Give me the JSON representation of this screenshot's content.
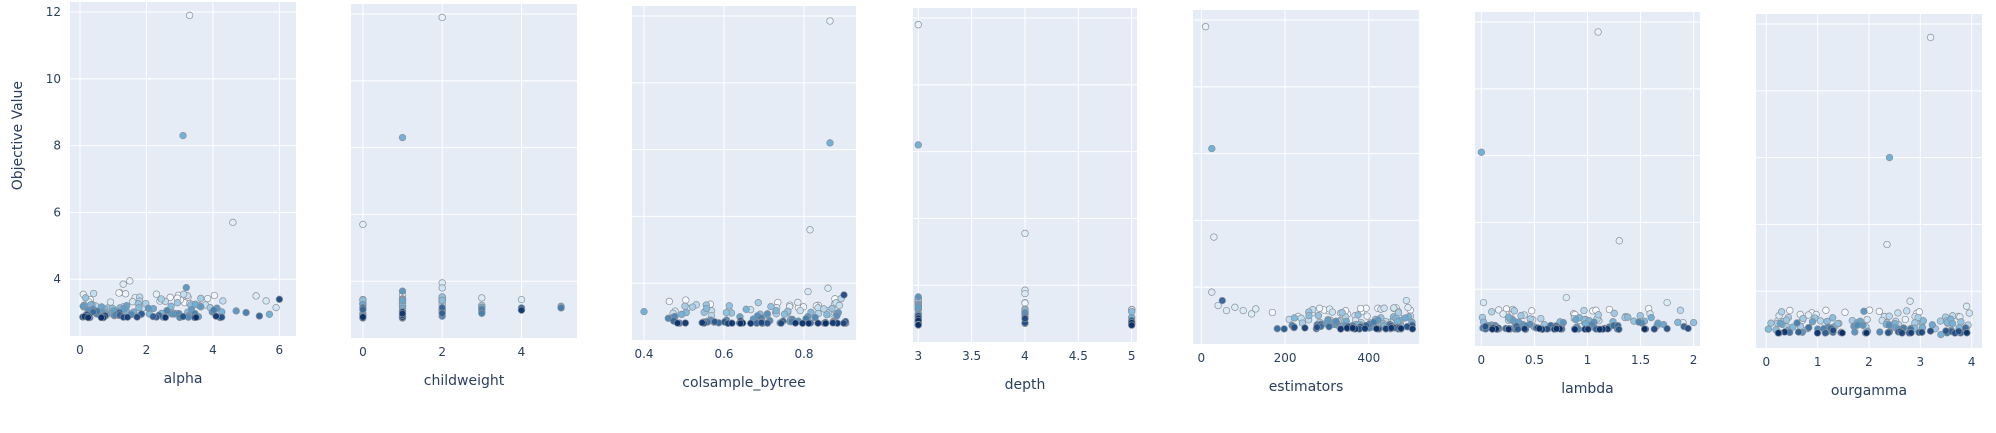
{
  "y_axis_title": "Objective Value",
  "y_ticks": [
    4,
    6,
    8,
    10,
    12
  ],
  "colors": {
    "plot_bg": "#e5ecf6",
    "grid": "#ffffff",
    "text": "#2a3f5f",
    "early_trial": "#f7fbff",
    "mid_trial": "#6baed6",
    "late_trial": "#08306b"
  },
  "chart_data": [
    {
      "type": "scatter",
      "xlabel": "alpha",
      "ylabel": "Objective Value",
      "xlim": [
        -0.3,
        6.5
      ],
      "ylim": [
        2.3,
        12.3
      ],
      "x_ticks": [
        0,
        2,
        4,
        6
      ],
      "x_tick_labels": [
        "0",
        "2",
        "4",
        "6"
      ],
      "points": [
        {
          "x": 3.3,
          "y": 11.9,
          "c": 0.05
        },
        {
          "x": 3.1,
          "y": 8.3,
          "c": 0.5
        },
        {
          "x": 4.6,
          "y": 5.7,
          "c": 0.08
        },
        {
          "x": 3.2,
          "y": 3.75,
          "c": 0.6
        },
        {
          "x": 1.5,
          "y": 3.95,
          "c": 0.05
        },
        {
          "x": 1.3,
          "y": 3.85,
          "c": 0.1
        },
        {
          "x": 0.1,
          "y": 3.55,
          "c": 0.05
        },
        {
          "x": 5.3,
          "y": 3.5,
          "c": 0.1
        },
        {
          "x": 5.6,
          "y": 3.35,
          "c": 0.12
        },
        {
          "x": 6.0,
          "y": 3.4,
          "c": 0.9
        },
        {
          "x": 5.9,
          "y": 3.15,
          "c": 0.15
        },
        {
          "x": 4.3,
          "y": 3.35,
          "c": 0.2
        },
        {
          "x": 4.7,
          "y": 3.05,
          "c": 0.6
        },
        {
          "x": 5.0,
          "y": 3.0,
          "c": 0.7
        },
        {
          "x": 5.4,
          "y": 2.9,
          "c": 0.8
        },
        {
          "x": 5.7,
          "y": 2.95,
          "c": 0.5
        }
      ],
      "cluster": {
        "x0": 0.0,
        "x1": 4.3,
        "y0": 2.85,
        "y1": 3.6,
        "n": 130,
        "seed": 11
      }
    },
    {
      "type": "scatter",
      "xlabel": "childweight",
      "ylabel": "Objective Value",
      "xlim": [
        -0.3,
        5.4
      ],
      "ylim": [
        2.3,
        12.3
      ],
      "x_ticks": [
        0,
        2,
        4
      ],
      "x_tick_labels": [
        "0",
        "2",
        "4"
      ],
      "points": [
        {
          "x": 2,
          "y": 11.9,
          "c": 0.05
        },
        {
          "x": 1,
          "y": 8.3,
          "c": 0.5
        },
        {
          "x": 0,
          "y": 5.7,
          "c": 0.08
        },
        {
          "x": 2,
          "y": 3.95,
          "c": 0.1
        },
        {
          "x": 2,
          "y": 3.8,
          "c": 0.15
        },
        {
          "x": 1,
          "y": 3.7,
          "c": 0.6
        },
        {
          "x": 3,
          "y": 3.5,
          "c": 0.1
        },
        {
          "x": 4,
          "y": 3.45,
          "c": 0.1
        },
        {
          "x": 5,
          "y": 3.2,
          "c": 0.7
        },
        {
          "x": 5,
          "y": 3.25,
          "c": 0.5
        },
        {
          "x": 4,
          "y": 3.2,
          "c": 0.8
        },
        {
          "x": 3,
          "y": 3.1,
          "c": 0.6
        }
      ],
      "columns": [
        {
          "x": 0,
          "y0": 2.85,
          "y1": 3.5,
          "n": 14
        },
        {
          "x": 1,
          "y0": 2.85,
          "y1": 3.6,
          "n": 26
        },
        {
          "x": 2,
          "y0": 2.85,
          "y1": 3.6,
          "n": 18
        },
        {
          "x": 3,
          "y0": 3.0,
          "y1": 3.35,
          "n": 5
        },
        {
          "x": 4,
          "y0": 3.1,
          "y1": 3.3,
          "n": 3
        }
      ]
    },
    {
      "type": "scatter",
      "xlabel": "colsample_bytree",
      "ylabel": "Objective Value",
      "xlim": [
        0.37,
        0.93
      ],
      "ylim": [
        2.3,
        12.3
      ],
      "x_ticks": [
        0.4,
        0.6,
        0.8
      ],
      "x_tick_labels": [
        "0.4",
        "0.6",
        "0.8"
      ],
      "points": [
        {
          "x": 0.865,
          "y": 11.85,
          "c": 0.05
        },
        {
          "x": 0.865,
          "y": 8.2,
          "c": 0.5
        },
        {
          "x": 0.815,
          "y": 5.6,
          "c": 0.08
        },
        {
          "x": 0.86,
          "y": 3.85,
          "c": 0.1
        },
        {
          "x": 0.81,
          "y": 3.75,
          "c": 0.12
        },
        {
          "x": 0.9,
          "y": 3.65,
          "c": 0.9
        },
        {
          "x": 0.4,
          "y": 3.15,
          "c": 0.5
        }
      ],
      "cluster": {
        "x0": 0.42,
        "x1": 0.905,
        "y0": 2.8,
        "y1": 3.55,
        "n": 130,
        "seed": 23,
        "skew": 0.4
      }
    },
    {
      "type": "scatter",
      "xlabel": "depth",
      "ylabel": "Objective Value",
      "xlim": [
        2.95,
        5.05
      ],
      "ylim": [
        2.3,
        12.3
      ],
      "x_ticks": [
        3,
        3.5,
        4,
        4.5,
        5
      ],
      "x_tick_labels": [
        "3",
        "3.5",
        "4",
        "4.5",
        "5"
      ],
      "points": [
        {
          "x": 3,
          "y": 11.8,
          "c": 0.05
        },
        {
          "x": 3,
          "y": 8.2,
          "c": 0.5
        },
        {
          "x": 4,
          "y": 5.55,
          "c": 0.08
        },
        {
          "x": 4,
          "y": 3.85,
          "c": 0.1
        },
        {
          "x": 4,
          "y": 3.75,
          "c": 0.1
        },
        {
          "x": 3,
          "y": 3.65,
          "c": 0.6
        }
      ],
      "columns": [
        {
          "x": 3,
          "y0": 2.8,
          "y1": 3.6,
          "n": 40
        },
        {
          "x": 4,
          "y0": 2.8,
          "y1": 3.5,
          "n": 14
        },
        {
          "x": 5,
          "y0": 2.8,
          "y1": 3.3,
          "n": 10
        }
      ]
    },
    {
      "type": "scatter",
      "xlabel": "estimators",
      "ylabel": "Objective Value",
      "xlim": [
        -20,
        520
      ],
      "ylim": [
        2.3,
        12.3
      ],
      "x_ticks": [
        0,
        200,
        400
      ],
      "x_tick_labels": [
        "0",
        "200",
        "400"
      ],
      "points": [
        {
          "x": 10,
          "y": 11.8,
          "c": 0.05
        },
        {
          "x": 25,
          "y": 8.15,
          "c": 0.5
        },
        {
          "x": 30,
          "y": 5.5,
          "c": 0.08
        },
        {
          "x": 25,
          "y": 3.85,
          "c": 0.1
        },
        {
          "x": 50,
          "y": 3.6,
          "c": 0.8
        },
        {
          "x": 40,
          "y": 3.45,
          "c": 0.1
        },
        {
          "x": 60,
          "y": 3.3,
          "c": 0.1
        },
        {
          "x": 80,
          "y": 3.4,
          "c": 0.1
        },
        {
          "x": 100,
          "y": 3.3,
          "c": 0.1
        },
        {
          "x": 120,
          "y": 3.2,
          "c": 0.1
        },
        {
          "x": 130,
          "y": 3.35,
          "c": 0.1
        },
        {
          "x": 490,
          "y": 3.6,
          "c": 0.15
        }
      ],
      "cluster": {
        "x0": 140,
        "x1": 505,
        "y0": 2.75,
        "y1": 3.4,
        "n": 140,
        "seed": 37,
        "skew": 0.55
      }
    },
    {
      "type": "scatter",
      "xlabel": "lambda",
      "ylabel": "Objective Value",
      "xlim": [
        -0.06,
        2.06
      ],
      "ylim": [
        2.3,
        12.3
      ],
      "x_ticks": [
        0,
        0.5,
        1,
        1.5,
        2
      ],
      "x_tick_labels": [
        "0",
        "0.5",
        "1",
        "1.5",
        "2"
      ],
      "points": [
        {
          "x": 1.1,
          "y": 11.7,
          "c": 0.05
        },
        {
          "x": 0.0,
          "y": 8.1,
          "c": 0.5
        },
        {
          "x": 1.3,
          "y": 5.45,
          "c": 0.08
        },
        {
          "x": 0.8,
          "y": 3.75,
          "c": 0.1
        },
        {
          "x": 1.75,
          "y": 3.6,
          "c": 0.1
        },
        {
          "x": 0.02,
          "y": 3.6,
          "c": 0.12
        },
        {
          "x": 1.6,
          "y": 3.15,
          "c": 0.5
        },
        {
          "x": 1.9,
          "y": 3.0,
          "c": 0.1
        },
        {
          "x": 2.0,
          "y": 3.0,
          "c": 0.4
        }
      ],
      "cluster": {
        "x0": 0.0,
        "x1": 1.95,
        "y0": 2.8,
        "y1": 3.45,
        "n": 140,
        "seed": 53,
        "skew": -0.5
      }
    },
    {
      "type": "scatter",
      "xlabel": "ourgamma",
      "ylabel": "Objective Value",
      "xlim": [
        -0.2,
        4.2
      ],
      "ylim": [
        2.3,
        12.3
      ],
      "x_ticks": [
        0,
        1,
        2,
        3,
        4
      ],
      "x_tick_labels": [
        "0",
        "1",
        "2",
        "3",
        "4"
      ],
      "points": [
        {
          "x": 3.2,
          "y": 11.6,
          "c": 0.05
        },
        {
          "x": 2.4,
          "y": 8.0,
          "c": 0.5
        },
        {
          "x": 2.35,
          "y": 5.4,
          "c": 0.08
        },
        {
          "x": 2.8,
          "y": 3.7,
          "c": 0.1
        },
        {
          "x": 3.9,
          "y": 3.55,
          "c": 0.1
        },
        {
          "x": 1.9,
          "y": 3.4,
          "c": 0.6
        },
        {
          "x": 0.6,
          "y": 3.05,
          "c": 0.7
        },
        {
          "x": 3.6,
          "y": 2.8,
          "c": 0.8
        },
        {
          "x": 3.4,
          "y": 2.7,
          "c": 0.5
        }
      ],
      "cluster": {
        "x0": 0.0,
        "x1": 4.0,
        "y0": 2.75,
        "y1": 3.45,
        "n": 140,
        "seed": 71
      }
    }
  ]
}
